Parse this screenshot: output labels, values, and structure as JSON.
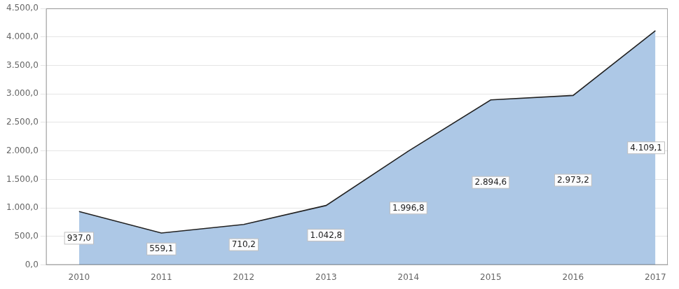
{
  "chart_data": {
    "type": "area",
    "x": [
      2010,
      2011,
      2012,
      2013,
      2014,
      2015,
      2016,
      2017
    ],
    "values": [
      937.0,
      559.1,
      710.2,
      1042.8,
      1996.8,
      2894.6,
      2973.2,
      4109.1
    ],
    "value_labels": [
      "937,0",
      "559,1",
      "710,2",
      "1.042,8",
      "1.996,8",
      "2.894,6",
      "2.973,2",
      "4.109,1"
    ],
    "data_labels": true,
    "color": "#adc8e6",
    "xlim": [
      2009.6,
      2017.15
    ],
    "xticks": [
      2010,
      2011,
      2012,
      2013,
      2014,
      2015,
      2016,
      2017
    ],
    "ylim": [
      0,
      4500
    ],
    "yticks": [
      {
        "value": 0,
        "label": "0,0"
      },
      {
        "value": 500,
        "label": "500,0"
      },
      {
        "value": 1000,
        "label": "1.000,0"
      },
      {
        "value": 1500,
        "label": "1.500,0"
      },
      {
        "value": 2000,
        "label": "2.000,0"
      },
      {
        "value": 2500,
        "label": "2.500,0"
      },
      {
        "value": 3000,
        "label": "3.000,0"
      },
      {
        "value": 3500,
        "label": "3.500,0"
      },
      {
        "value": 4000,
        "label": "4.000,0"
      },
      {
        "value": 4500,
        "label": "4.500,0"
      }
    ],
    "grid": "y"
  }
}
